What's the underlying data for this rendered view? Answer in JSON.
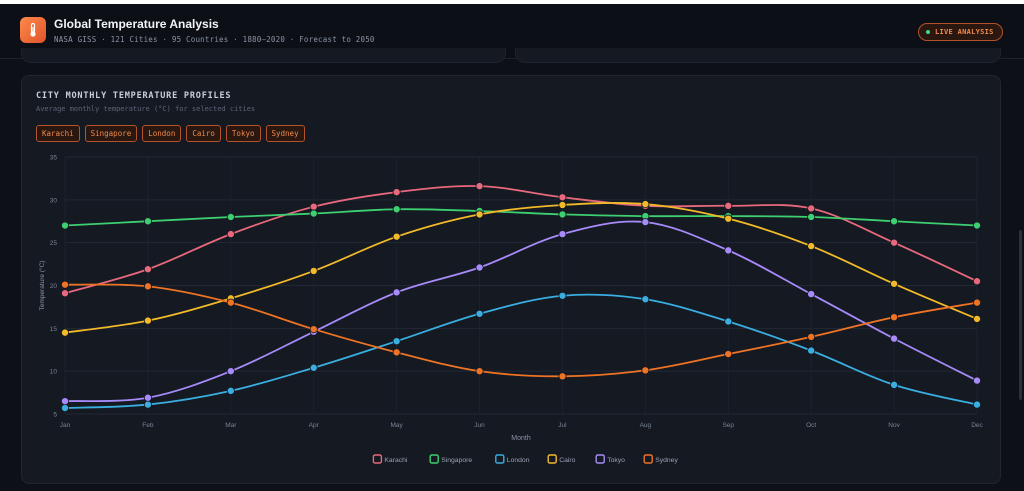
{
  "header": {
    "title": "Global Temperature Analysis",
    "subtitle": "NASA GISS · 121 Cities · 95 Countries · 1880–2020 · Forecast to 2050",
    "live_badge": "LIVE ANALYSIS",
    "logo_icon": "thermometer-icon"
  },
  "card": {
    "title": "CITY MONTHLY TEMPERATURE PROFILES",
    "subtitle": "Average monthly temperature (°C) for selected cities",
    "chips": [
      "Karachi",
      "Singapore",
      "London",
      "Cairo",
      "Tokyo",
      "Sydney"
    ]
  },
  "colors": {
    "accent": "#f08a4b",
    "live_dot": "#3ddc84"
  },
  "chart_data": {
    "type": "line",
    "title": "",
    "xlabel": "Month",
    "ylabel": "Temperature (°C)",
    "ylim": [
      5,
      35
    ],
    "yticks": [
      5,
      10,
      15,
      20,
      25,
      30,
      35
    ],
    "grid": true,
    "legend_placement": "bottom-center",
    "categories": [
      "Jan",
      "Feb",
      "Mar",
      "Apr",
      "May",
      "Jun",
      "Jul",
      "Aug",
      "Sep",
      "Oct",
      "Nov",
      "Dec"
    ],
    "series": [
      {
        "name": "Karachi",
        "color": "#e8697d",
        "values": [
          19.1,
          21.9,
          26.0,
          29.2,
          30.9,
          31.6,
          30.3,
          29.3,
          29.3,
          29.0,
          25.0,
          20.5
        ]
      },
      {
        "name": "Singapore",
        "color": "#3ecf70",
        "values": [
          27.0,
          27.5,
          28.0,
          28.4,
          28.9,
          28.7,
          28.3,
          28.1,
          28.1,
          28.0,
          27.5,
          27.0
        ]
      },
      {
        "name": "London",
        "color": "#3aaee0",
        "values": [
          5.7,
          6.1,
          7.7,
          10.4,
          13.5,
          16.7,
          18.8,
          18.4,
          15.8,
          12.4,
          8.4,
          6.1
        ]
      },
      {
        "name": "Cairo",
        "color": "#f2b929",
        "values": [
          14.5,
          15.9,
          18.5,
          21.7,
          25.7,
          28.3,
          29.4,
          29.5,
          27.8,
          24.6,
          20.2,
          16.1
        ]
      },
      {
        "name": "Tokyo",
        "color": "#a78bfa",
        "values": [
          6.5,
          6.9,
          10.0,
          14.6,
          19.2,
          22.1,
          26.0,
          27.4,
          24.1,
          19.0,
          13.8,
          8.9
        ]
      },
      {
        "name": "Sydney",
        "color": "#ee7324",
        "values": [
          20.1,
          19.9,
          18.0,
          14.9,
          12.2,
          10.0,
          9.4,
          10.1,
          12.0,
          14.0,
          16.3,
          18.0
        ]
      }
    ]
  }
}
